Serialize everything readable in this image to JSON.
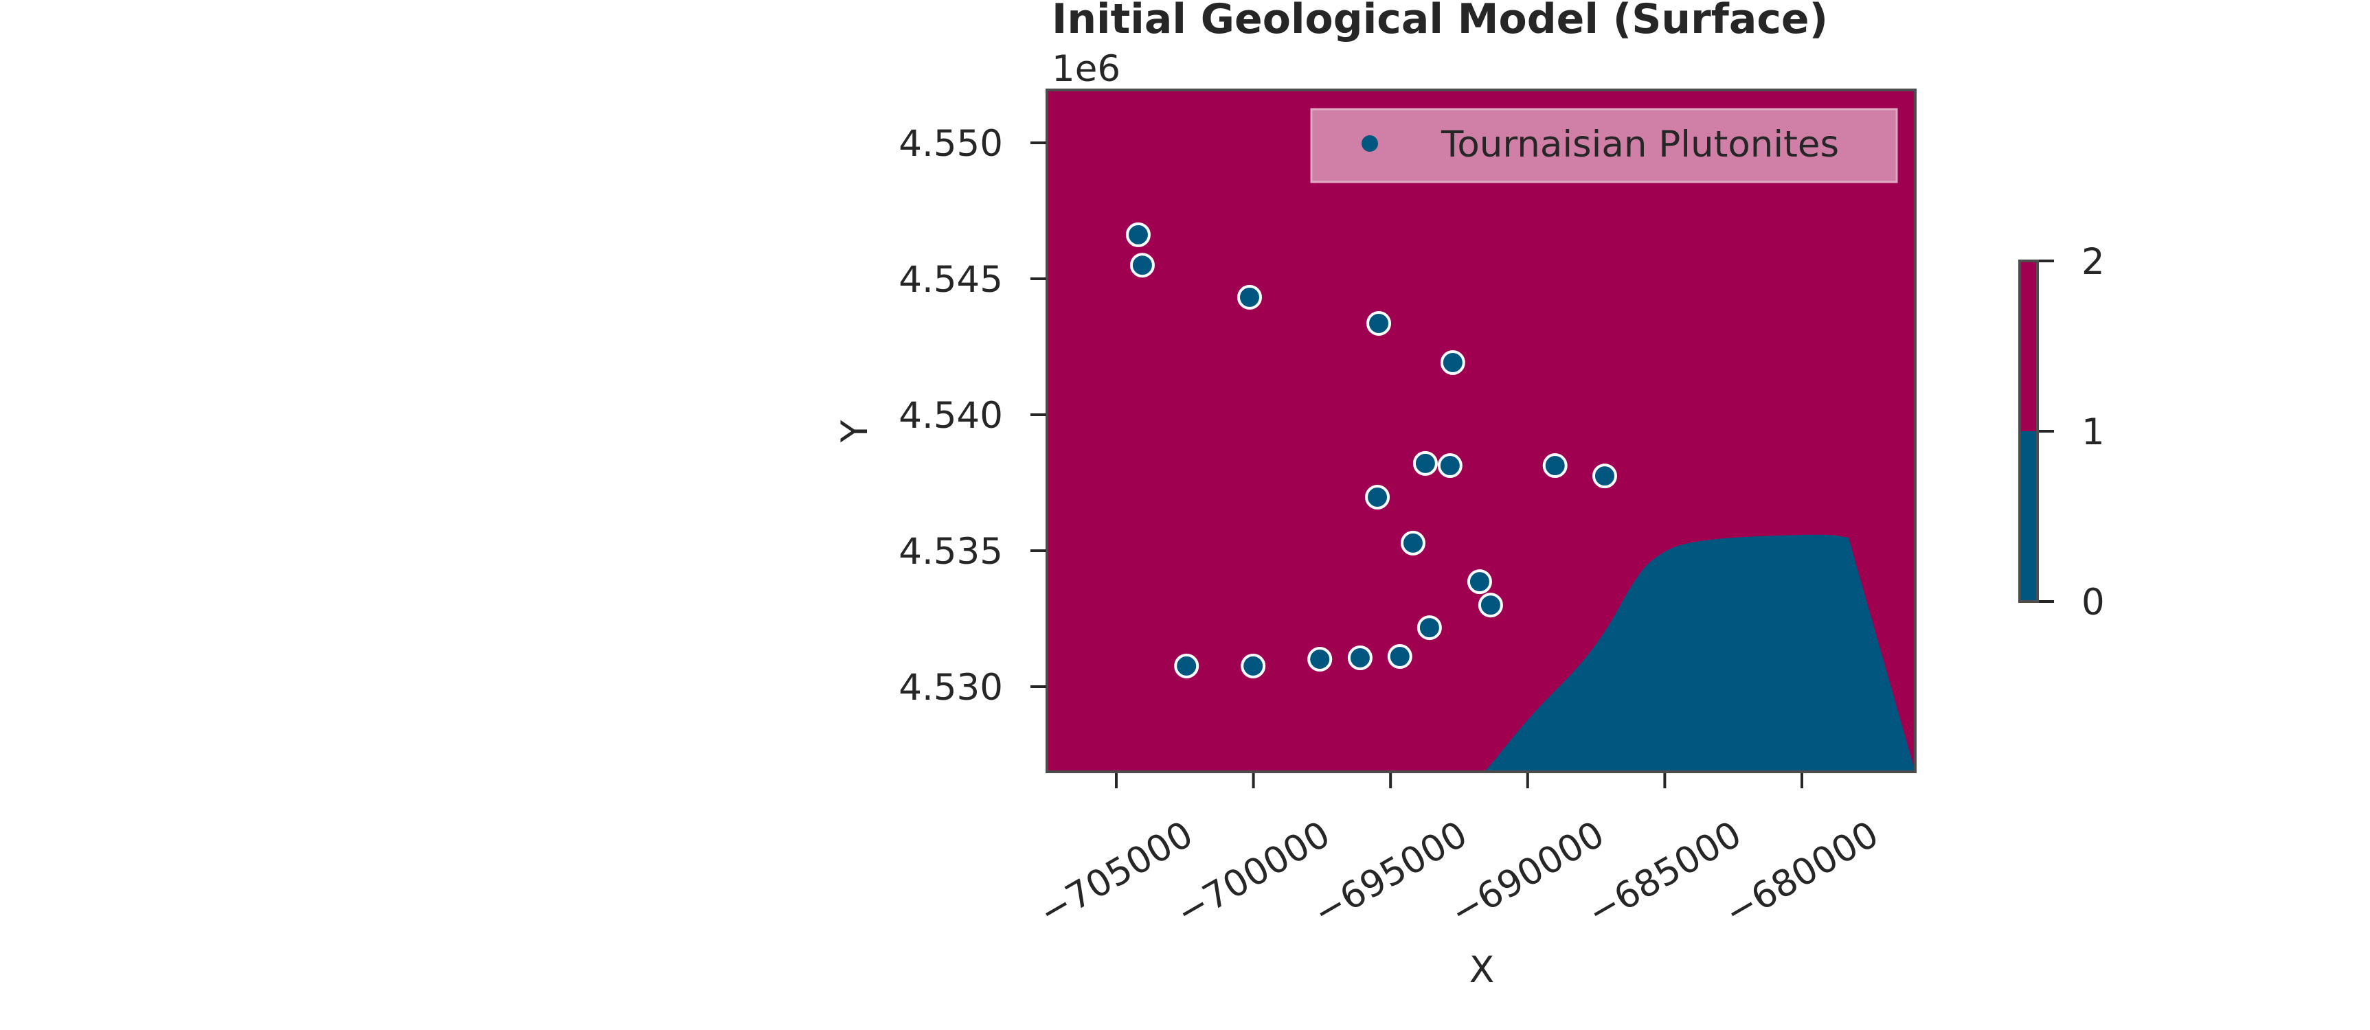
{
  "chart_data": {
    "type": "scatter",
    "title": "Initial Geological Model (Surface)",
    "xlabel": "X",
    "ylabel": "Y",
    "y_offset_label": "1e6",
    "xlim": [
      -707500,
      -678300
    ],
    "ylim": [
      4526800,
      4552000
    ],
    "x_ticks": [
      -705000,
      -700000,
      -695000,
      -690000,
      -685000,
      -680000
    ],
    "x_tick_labels": [
      "−705000",
      "−700000",
      "−695000",
      "−690000",
      "−685000",
      "−680000"
    ],
    "y_ticks": [
      4550000,
      4545000,
      4540000,
      4535000,
      4530000
    ],
    "y_tick_labels": [
      "4.550",
      "4.545",
      "4.540",
      "4.535",
      "4.530"
    ],
    "grid": false,
    "legend": {
      "position": "upper right",
      "entries": [
        {
          "label": "Tournaisian Plutonites",
          "marker": "circle",
          "color": "#01567f"
        }
      ]
    },
    "background_field": {
      "type": "filled_contour",
      "description": "Geological unit id; value 2 region (upper/left) and value 0-1 region (lower right)",
      "colors": {
        "unit_high": "#9f0050",
        "unit_low": "#01567f"
      },
      "boundary_approx": [
        [
          -691600,
          4526800
        ],
        [
          -689850,
          4529000
        ],
        [
          -688140,
          4530700
        ],
        [
          -687070,
          4532150
        ],
        [
          -686220,
          4533740
        ],
        [
          -685470,
          4534750
        ],
        [
          -684020,
          4535430
        ],
        [
          -679160,
          4535630
        ],
        [
          -678300,
          4535480
        ]
      ]
    },
    "colorbar": {
      "ticks": [
        0,
        1,
        2
      ],
      "tick_labels": [
        "0",
        "1",
        "2"
      ],
      "segments": [
        {
          "from": 0,
          "to": 1,
          "color": "#01567f"
        },
        {
          "from": 1,
          "to": 2,
          "color": "#9f0050"
        }
      ]
    },
    "series": [
      {
        "name": "Tournaisian Plutonites",
        "color": "#01567f",
        "edgecolor": "#ffffff",
        "points": [
          [
            -704200,
            4546620
          ],
          [
            -704050,
            4545500
          ],
          [
            -700140,
            4544320
          ],
          [
            -695430,
            4543360
          ],
          [
            -692730,
            4541920
          ],
          [
            -693730,
            4538210
          ],
          [
            -692830,
            4538130
          ],
          [
            -689000,
            4538130
          ],
          [
            -687190,
            4537750
          ],
          [
            -695480,
            4536970
          ],
          [
            -694180,
            4535280
          ],
          [
            -691750,
            4533860
          ],
          [
            -691350,
            4533000
          ],
          [
            -693580,
            4532170
          ],
          [
            -694660,
            4531110
          ],
          [
            -696110,
            4531060
          ],
          [
            -697580,
            4531010
          ],
          [
            -700010,
            4530760
          ],
          [
            -702440,
            4530760
          ]
        ]
      }
    ]
  }
}
